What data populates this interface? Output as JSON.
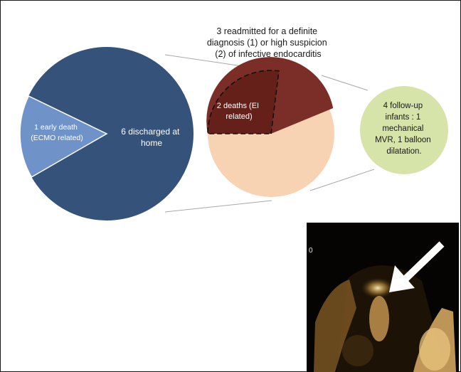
{
  "colors": {
    "main_pie_dark": "#35527b",
    "main_pie_light": "#6f93c9",
    "readmit_dark": "#7b2e27",
    "readmit_darker": "#652019",
    "readmit_light": "#f7d3b3",
    "followup_green": "#d6e3a9",
    "connector_gray": "#a8a8a8"
  },
  "main_pie": {
    "early_death_label_1": "1 early death",
    "early_death_label_2": "(ECMO related)",
    "discharged_label_1": "6 discharged at",
    "discharged_label_2": "home"
  },
  "readmitted": {
    "title_1": "3 readmitted for a definite",
    "title_2": "diagnosis (1) or high suspicion",
    "title_3": "(2) of infective endocarditis",
    "deaths_label_1": "2 deaths (EI",
    "deaths_label_2": "related)"
  },
  "followup": {
    "line_1": "4 follow-up",
    "line_2": "infants : 1",
    "line_3": "mechanical",
    "line_4": "MVR, 1 balloon",
    "line_5": "dilatation."
  },
  "echo_image": {
    "depth_marker": "0",
    "arrow_icon": "white-arrow-pointing-down-left"
  }
}
